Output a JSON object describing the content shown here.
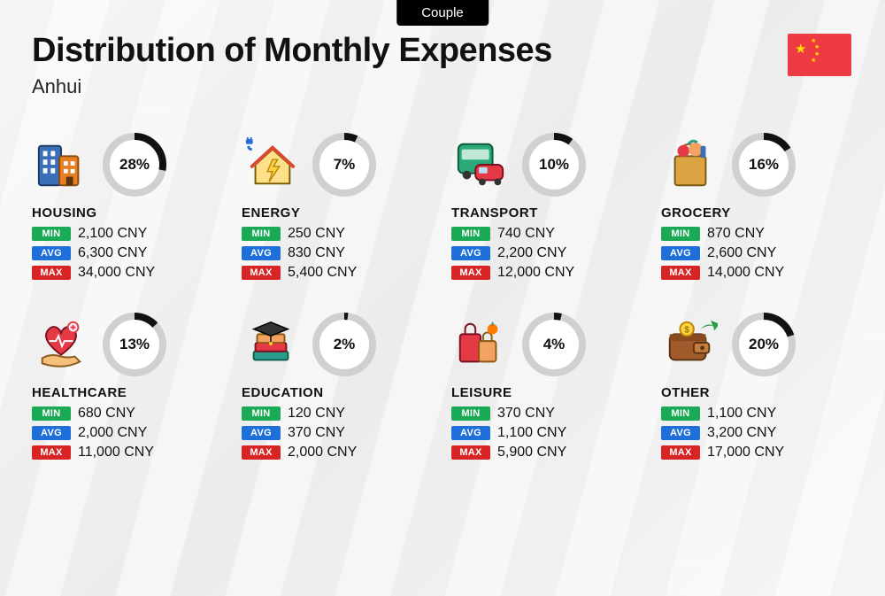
{
  "tab_label": "Couple",
  "title": "Distribution of Monthly Expenses",
  "subtitle": "Anhui",
  "currency": "CNY",
  "badges": {
    "min": "MIN",
    "avg": "AVG",
    "max": "MAX"
  },
  "badge_colors": {
    "min": "#1aaa55",
    "avg": "#1e6fd9",
    "max": "#d82424"
  },
  "donut": {
    "size": 72,
    "stroke_width": 8,
    "track_color": "#d0d0d0",
    "fill_color": "#111111",
    "inner_bg": "#ffffff"
  },
  "flag_bg": "#ee3a43",
  "flag_star": "#ffde00",
  "categories": [
    {
      "key": "housing",
      "label": "HOUSING",
      "percent": 28,
      "min": "2,100",
      "avg": "6,300",
      "max": "34,000",
      "icon": "buildings"
    },
    {
      "key": "energy",
      "label": "ENERGY",
      "percent": 7,
      "min": "250",
      "avg": "830",
      "max": "5,400",
      "icon": "energy-house"
    },
    {
      "key": "transport",
      "label": "TRANSPORT",
      "percent": 10,
      "min": "740",
      "avg": "2,200",
      "max": "12,000",
      "icon": "bus-car"
    },
    {
      "key": "grocery",
      "label": "GROCERY",
      "percent": 16,
      "min": "870",
      "avg": "2,600",
      "max": "14,000",
      "icon": "grocery-bag"
    },
    {
      "key": "healthcare",
      "label": "HEALTHCARE",
      "percent": 13,
      "min": "680",
      "avg": "2,000",
      "max": "11,000",
      "icon": "heart-hand"
    },
    {
      "key": "education",
      "label": "EDUCATION",
      "percent": 2,
      "min": "120",
      "avg": "370",
      "max": "2,000",
      "icon": "books-cap"
    },
    {
      "key": "leisure",
      "label": "LEISURE",
      "percent": 4,
      "min": "370",
      "avg": "1,100",
      "max": "5,900",
      "icon": "shopping-bags"
    },
    {
      "key": "other",
      "label": "OTHER",
      "percent": 20,
      "min": "1,100",
      "avg": "3,200",
      "max": "17,000",
      "icon": "wallet-arrow"
    }
  ]
}
